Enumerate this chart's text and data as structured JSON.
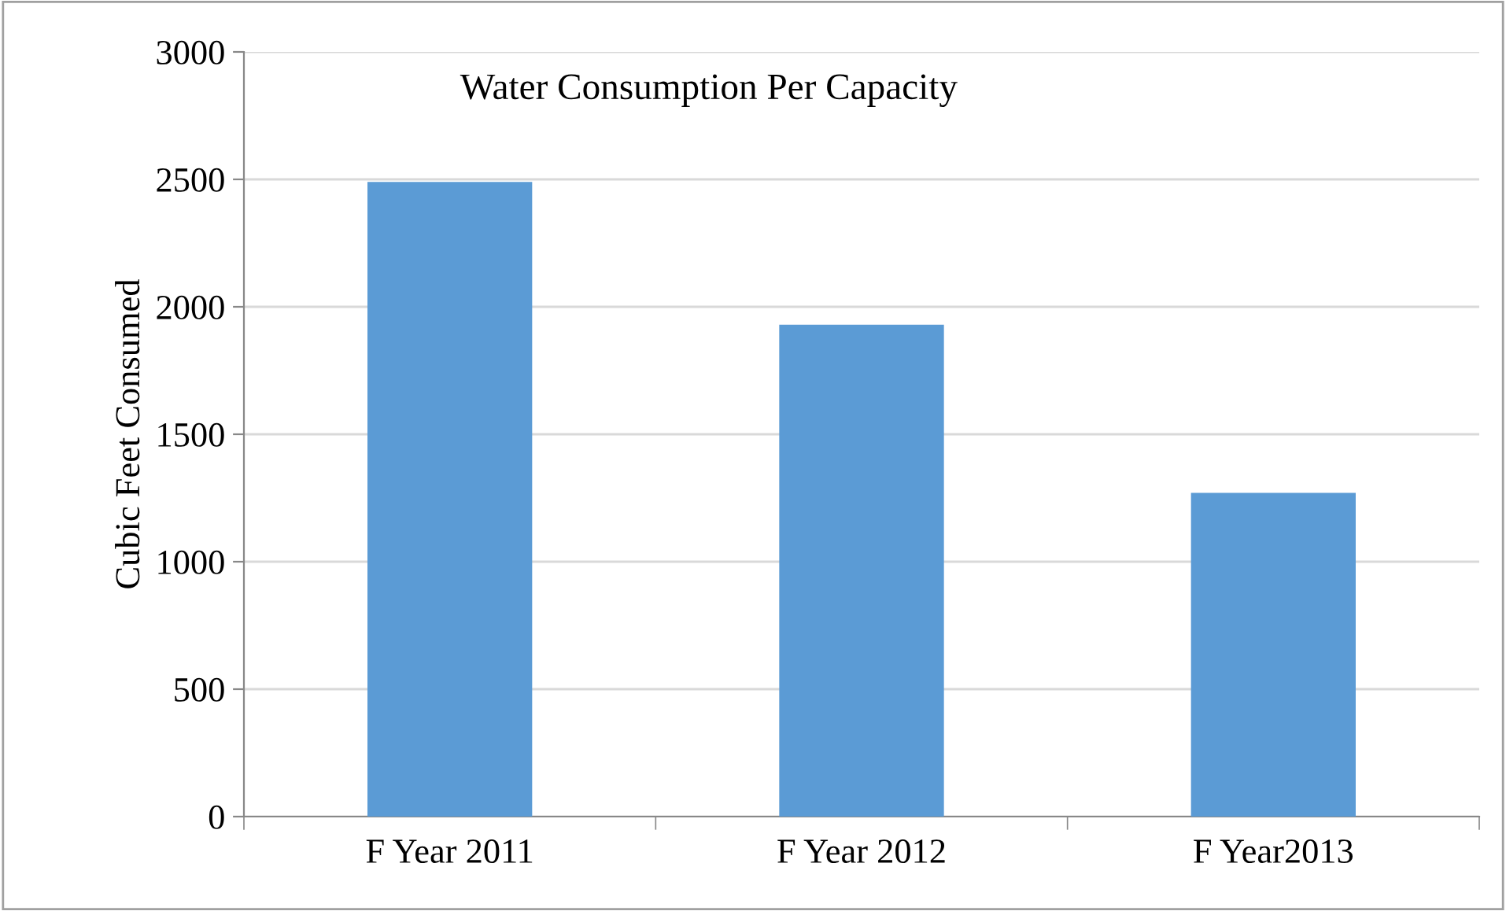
{
  "chart_data": {
    "type": "bar",
    "title": "Water Consumption Per Capacity",
    "ylabel": "Cubic Feet Consumed",
    "categories": [
      "F Year 2011",
      "F Year 2012",
      "F Year2013"
    ],
    "values": [
      2490,
      1930,
      1270
    ],
    "color": "#5b9bd5",
    "ylim": [
      0,
      3000
    ],
    "yticks": [
      0,
      500,
      1000,
      1500,
      2000,
      2500,
      3000
    ],
    "grid": "y"
  }
}
